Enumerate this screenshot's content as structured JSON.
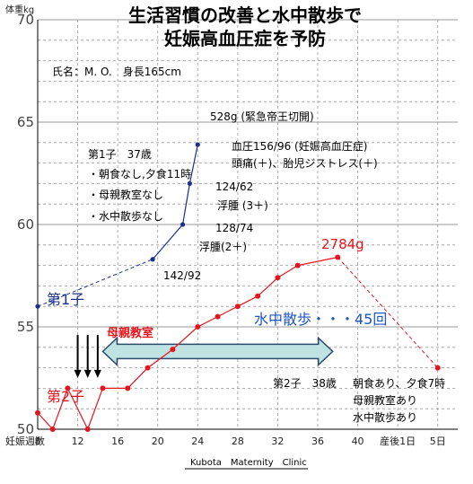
{
  "chart_data": {
    "type": "line",
    "title": "生活習慣の改善と水中散歩で",
    "subtitle": "妊娠高血圧症を予防",
    "patient_label": "氏名：M. O.　身長165cm",
    "ylabel": "体重kg",
    "xlabel": "妊娠週数",
    "ylim": [
      50,
      70
    ],
    "yticks": [
      50,
      55,
      60,
      65,
      70
    ],
    "xticks": [
      "8",
      "12",
      "16",
      "20",
      "24",
      "28",
      "32",
      "36",
      "40",
      "産後1日",
      "5日"
    ],
    "xlim": [
      8,
      50
    ],
    "grid": true,
    "footer": "Kubota　Maternity　Clinic",
    "series": [
      {
        "name": "第1子",
        "color": "#1c2f8c",
        "points": [
          {
            "x": 8,
            "y": 56.0
          },
          {
            "x": 19.5,
            "y": 58.3
          },
          {
            "x": 22.5,
            "y": 60.0
          },
          {
            "x": 23.2,
            "y": 62.0
          },
          {
            "x": 24.0,
            "y": 63.9
          }
        ],
        "dashed_until_index": 1
      },
      {
        "name": "第2子",
        "color": "#e8141c",
        "points": [
          {
            "x": 8,
            "y": 50.8
          },
          {
            "x": 9.5,
            "y": 50.0
          },
          {
            "x": 11,
            "y": 52.0
          },
          {
            "x": 13,
            "y": 50.0
          },
          {
            "x": 14.5,
            "y": 52.0
          },
          {
            "x": 17,
            "y": 52.0
          },
          {
            "x": 19,
            "y": 53.0
          },
          {
            "x": 21.5,
            "y": 53.9
          },
          {
            "x": 24,
            "y": 55.0
          },
          {
            "x": 26,
            "y": 55.5
          },
          {
            "x": 28,
            "y": 56.0
          },
          {
            "x": 30,
            "y": 56.5
          },
          {
            "x": 32,
            "y": 57.4
          },
          {
            "x": 34,
            "y": 58.0
          },
          {
            "x": 38,
            "y": 58.4
          },
          {
            "x": 48,
            "y": 53.0
          }
        ],
        "dashed_from_index": 14
      }
    ],
    "annotations": {
      "first_child_notes": [
        "第1子　37歳",
        "・朝食なし,夕食11時",
        "・母親教室なし",
        "・水中散歩なし"
      ],
      "bp_142": "142/92",
      "edema2": "浮腫(2＋)",
      "bp_128": "128/74",
      "edema3": "浮腫 (3＋)",
      "bp_124": "124/62",
      "final_line1": "血圧156/96 (妊娠高血圧症)",
      "final_line2": "頭痛(＋)、胎児ジストレス(＋)",
      "birth1": "528g (緊急帝王切開)",
      "birth2": "2784g",
      "classes_label": "母親教室",
      "walk_label": "水中散歩・・・45回",
      "second_child_notes": [
        "第2子　38歳",
        "朝食あり、夕食7時",
        "母親教室あり",
        "水中散歩あり"
      ]
    },
    "colors": {
      "first": "#1c2f8c",
      "second": "#e8141c",
      "arrow_fill": "#bfe3e3",
      "arrow_stroke": "#2a4b6a",
      "walk_text": "#1b55c4",
      "grid": "#999999"
    }
  }
}
